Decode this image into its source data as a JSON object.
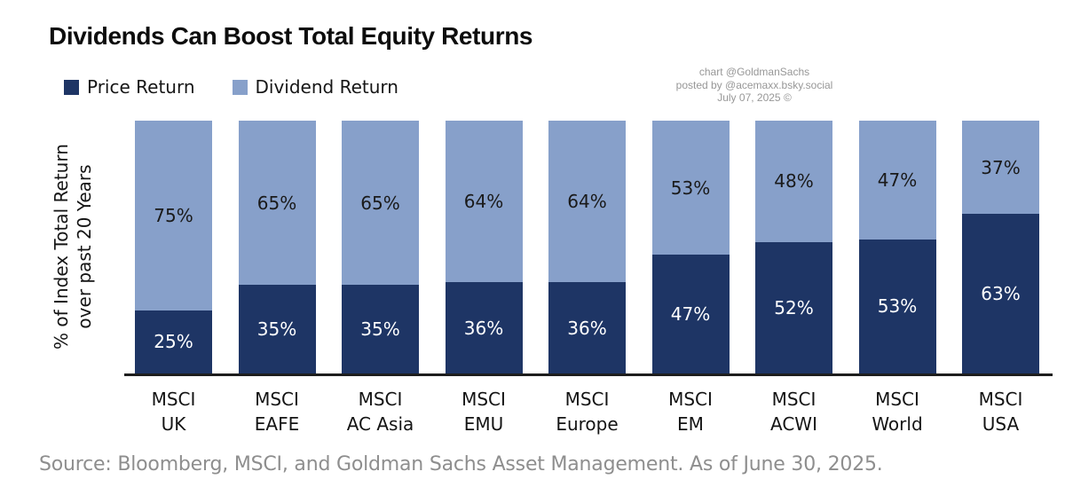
{
  "title": "Dividends Can Boost Total Equity Returns",
  "attribution": {
    "line1": "chart @GoldmanSachs",
    "line2": "posted by @acemaxx.bsky.social",
    "line3": "July 07, 2025 ©"
  },
  "legend": [
    {
      "label": "Price Return",
      "color": "#1e3565"
    },
    {
      "label": "Dividend Return",
      "color": "#87a0ca"
    }
  ],
  "ylabel": {
    "line1": "% of Index Total Return",
    "line2": "over past 20 Years"
  },
  "source": "Source: Bloomberg, MSCI, and Goldman Sachs Asset Management. As of June 30, 2025.",
  "chart_data": {
    "type": "bar",
    "stacked": true,
    "categories": [
      [
        "MSCI",
        "UK"
      ],
      [
        "MSCI",
        "EAFE"
      ],
      [
        "MSCI",
        "AC Asia"
      ],
      [
        "MSCI",
        "EMU"
      ],
      [
        "MSCI",
        "Europe"
      ],
      [
        "MSCI",
        "EM"
      ],
      [
        "MSCI",
        "ACWI"
      ],
      [
        "MSCI",
        "World"
      ],
      [
        "MSCI",
        "USA"
      ]
    ],
    "series": [
      {
        "name": "Price Return",
        "color": "#1e3565",
        "values": [
          25,
          35,
          35,
          36,
          36,
          47,
          52,
          53,
          63
        ]
      },
      {
        "name": "Dividend Return",
        "color": "#87a0ca",
        "values": [
          75,
          65,
          65,
          64,
          64,
          53,
          48,
          47,
          37
        ]
      }
    ],
    "value_suffix": "%",
    "ylabel": "% of Index Total Return over past 20 Years",
    "ylim": [
      0,
      100
    ],
    "grid": false,
    "legend_position": "top-left"
  }
}
